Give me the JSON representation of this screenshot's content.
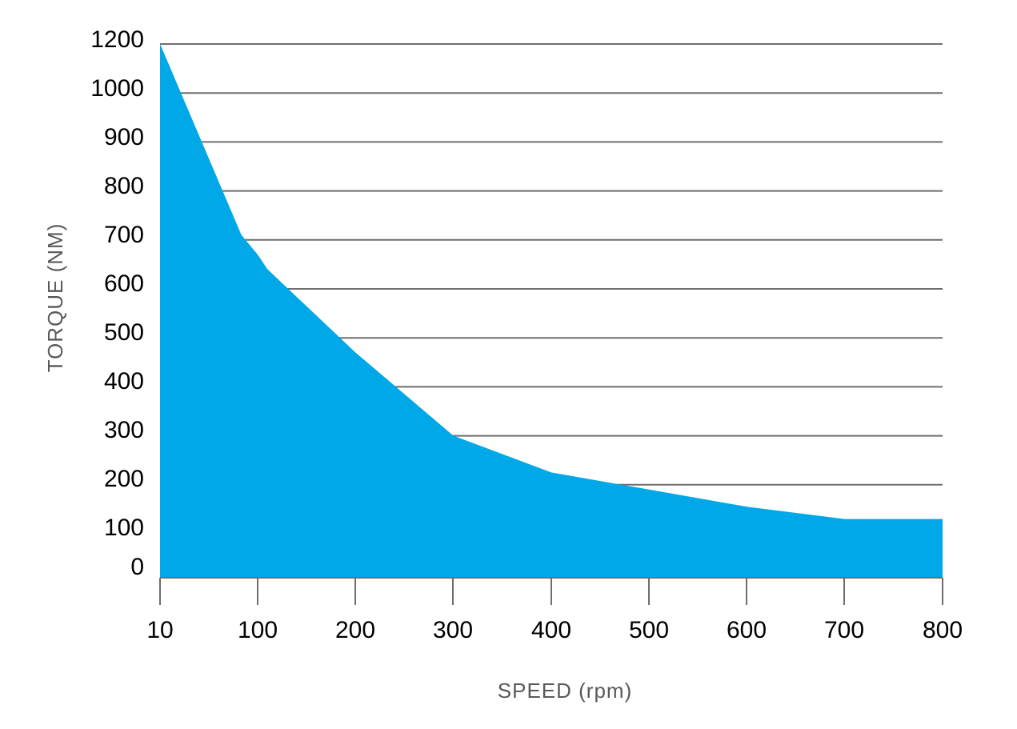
{
  "chart_data": {
    "type": "area",
    "xlabel": "SPEED (rpm)",
    "ylabel": "TORQUE (NM)",
    "x_ticks": [
      "10",
      "100",
      "200",
      "300",
      "400",
      "500",
      "600",
      "700",
      "800"
    ],
    "y_ticks": [
      "0",
      "100",
      "200",
      "300",
      "400",
      "500",
      "600",
      "700",
      "800",
      "900",
      "1000",
      "1200"
    ],
    "fill_color": "#00A8E8",
    "grid": true,
    "legend": "none",
    "series": [
      {
        "x": [
          10,
          85,
          100,
          110,
          200,
          300,
          400,
          500,
          600,
          700,
          800
        ],
        "y": [
          1200,
          700,
          660,
          630,
          460,
          290,
          215,
          180,
          145,
          120,
          120
        ]
      }
    ]
  }
}
